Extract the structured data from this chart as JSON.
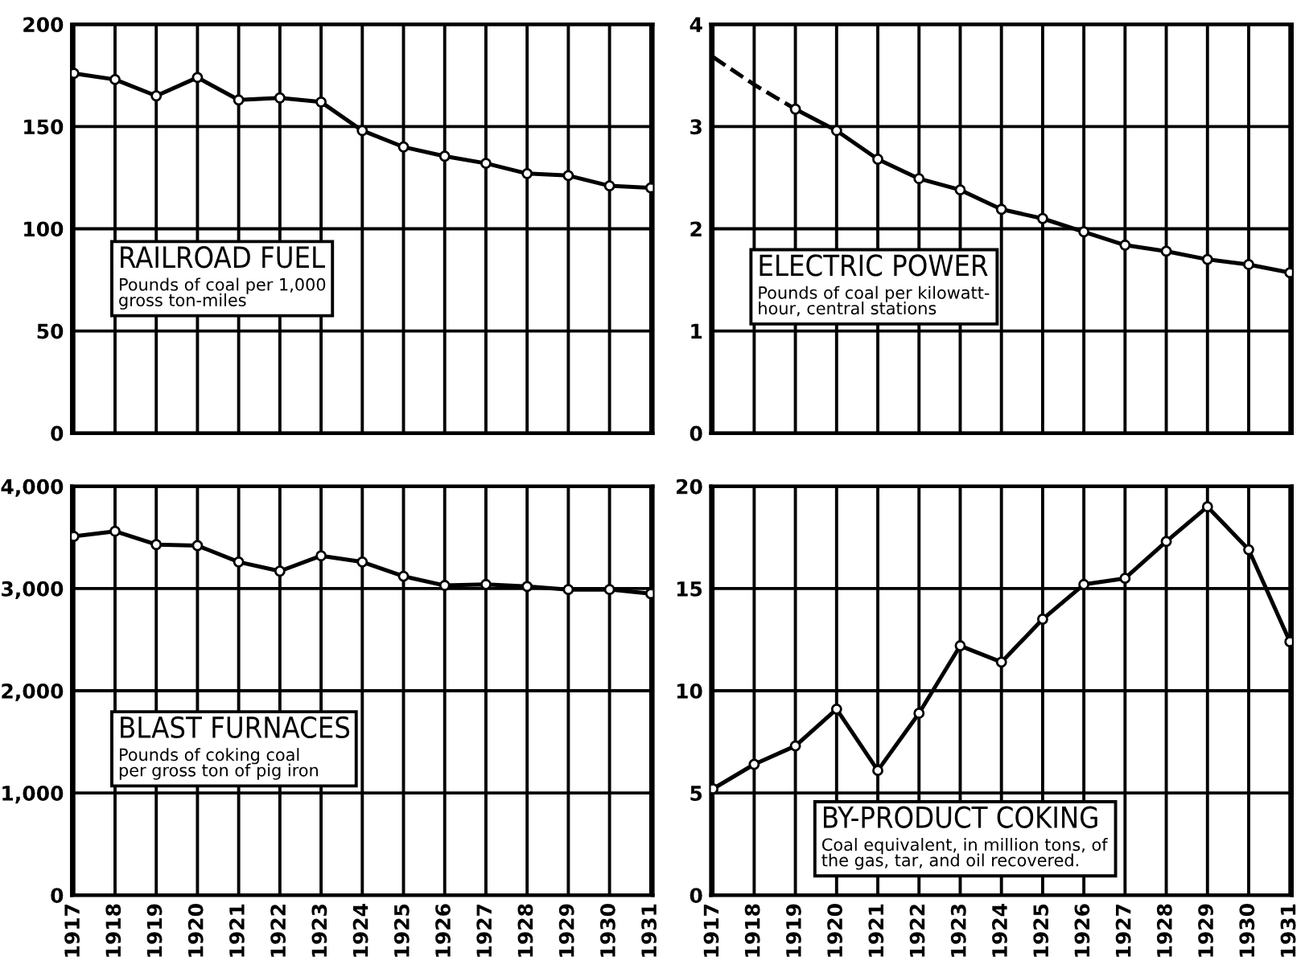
{
  "chart_data": [
    {
      "type": "line",
      "title": "RAILROAD FUEL",
      "subtitle": "Pounds of coal per 1,000\ngross ton-miles",
      "categories": [
        "1917",
        "1918",
        "1919",
        "1920",
        "1921",
        "1922",
        "1923",
        "1924",
        "1925",
        "1926",
        "1927",
        "1928",
        "1929",
        "1930",
        "1931"
      ],
      "series": [
        {
          "color": "#000000",
          "marker": "circle",
          "line_style": "solid",
          "values": [
            176,
            173,
            165,
            174,
            163,
            164,
            162,
            148,
            140,
            135.5,
            132,
            127,
            126,
            121,
            120
          ]
        }
      ],
      "ylim": [
        0,
        200
      ],
      "yticks": [
        0,
        50,
        100,
        150,
        200
      ],
      "grid": true,
      "tick_labels": "y"
    },
    {
      "type": "line",
      "title": "ELECTRIC POWER",
      "subtitle": "Pounds of coal per kilowatt-\nhour, central stations",
      "categories": [
        "1917",
        "1918",
        "1919",
        "1920",
        "1921",
        "1922",
        "1923",
        "1924",
        "1925",
        "1926",
        "1927",
        "1928",
        "1929",
        "1930",
        "1931"
      ],
      "series": [
        {
          "color": "#000000",
          "marker": "none",
          "line_style": "dashed",
          "values": [
            3.68,
            3.41,
            3.17,
            null,
            null,
            null,
            null,
            null,
            null,
            null,
            null,
            null,
            null,
            null,
            null
          ]
        },
        {
          "color": "#000000",
          "marker": "circle",
          "line_style": "solid",
          "values": [
            null,
            null,
            3.17,
            2.96,
            2.68,
            2.49,
            2.38,
            2.19,
            2.1,
            1.97,
            1.84,
            1.78,
            1.7,
            1.65,
            1.57
          ]
        }
      ],
      "ylim": [
        0,
        4
      ],
      "yticks": [
        0,
        1,
        2,
        3,
        4
      ],
      "grid": true,
      "tick_labels": "y"
    },
    {
      "type": "line",
      "title": "BLAST FURNACES",
      "subtitle": "Pounds of coking coal\nper gross ton of pig iron",
      "categories": [
        "1917",
        "1918",
        "1919",
        "1920",
        "1921",
        "1922",
        "1923",
        "1924",
        "1925",
        "1926",
        "1927",
        "1928",
        "1929",
        "1930",
        "1931"
      ],
      "series": [
        {
          "color": "#000000",
          "marker": "circle",
          "line_style": "solid",
          "values": [
            3510,
            3560,
            3430,
            3420,
            3260,
            3170,
            3320,
            3260,
            3120,
            3030,
            3040,
            3020,
            2990,
            2990,
            2950
          ]
        }
      ],
      "ylim": [
        0,
        4000
      ],
      "yticks": [
        0,
        {
          "value": 1000,
          "label": "1,000"
        },
        {
          "value": 2000,
          "label": "2,000"
        },
        {
          "value": 3000,
          "label": "3,000"
        },
        {
          "value": 4000,
          "label": "4,000"
        }
      ],
      "grid": true
    },
    {
      "type": "line",
      "title": "BY-PRODUCT COKING",
      "subtitle": "Coal equivalent, in million tons, of\nthe gas, tar, and oil recovered.",
      "categories": [
        "1917",
        "1918",
        "1919",
        "1920",
        "1921",
        "1922",
        "1923",
        "1924",
        "1925",
        "1926",
        "1927",
        "1928",
        "1929",
        "1930",
        "1931"
      ],
      "series": [
        {
          "color": "#000000",
          "marker": "circle",
          "line_style": "solid",
          "values": [
            5.2,
            6.4,
            7.3,
            9.1,
            6.1,
            8.9,
            12.2,
            11.4,
            13.5,
            15.2,
            15.5,
            17.3,
            19.0,
            16.9,
            12.4
          ]
        }
      ],
      "ylim": [
        0,
        20
      ],
      "yticks": [
        0,
        5,
        10,
        15,
        20
      ],
      "grid": true
    }
  ]
}
